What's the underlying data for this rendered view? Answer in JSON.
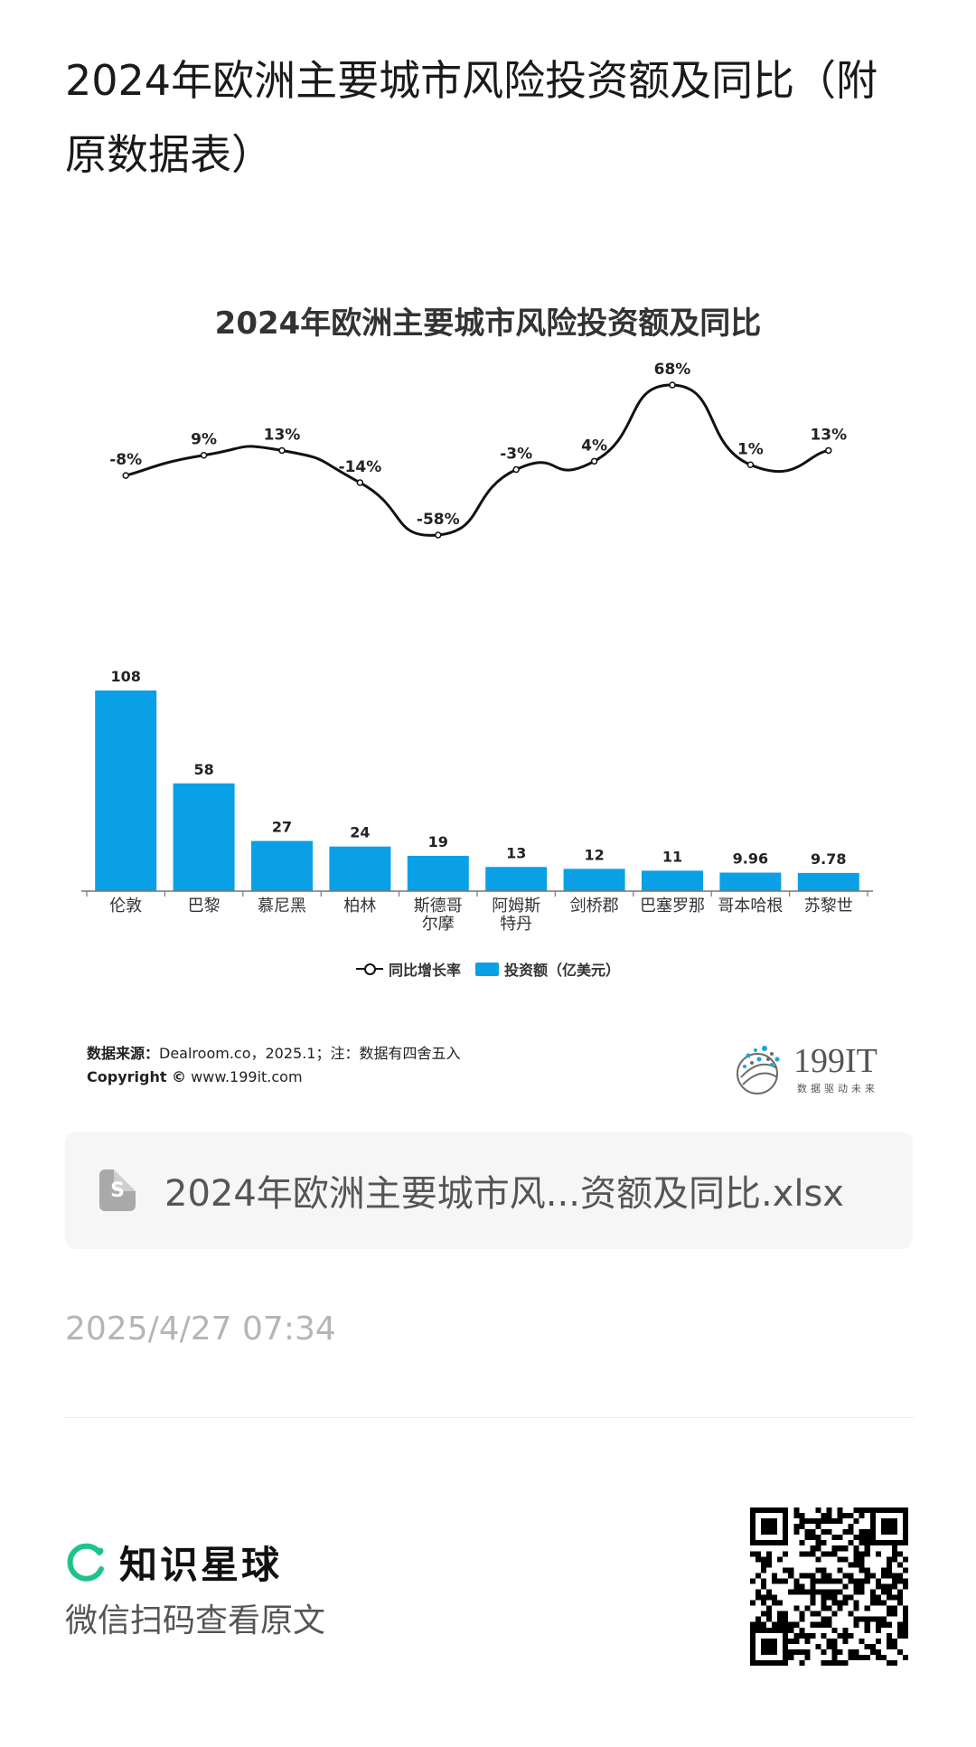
{
  "page": {
    "title": "2024年欧洲主要城市风险投资额及同比（附原数据表）"
  },
  "chart_data": {
    "type": "bar",
    "title": "2024年欧洲主要城市风险投资额及同比",
    "categories": [
      "伦敦",
      "巴黎",
      "慕尼黑",
      "柏林",
      "斯德哥尔摩",
      "阿姆斯特丹",
      "剑桥郡",
      "巴塞罗那",
      "哥本哈根",
      "苏黎世"
    ],
    "category_lines": [
      [
        "伦敦"
      ],
      [
        "巴黎"
      ],
      [
        "慕尼黑"
      ],
      [
        "柏林"
      ],
      [
        "斯德哥",
        "尔摩"
      ],
      [
        "阿姆斯",
        "特丹"
      ],
      [
        "剑桥郡"
      ],
      [
        "巴塞罗那"
      ],
      [
        "哥本哈根"
      ],
      [
        "苏黎世"
      ]
    ],
    "series": [
      {
        "name": "投资额（亿美元）",
        "type": "bar",
        "values": [
          108,
          58,
          27,
          24,
          19,
          13,
          12,
          11,
          9.96,
          9.78
        ],
        "labels": [
          "108",
          "58",
          "27",
          "24",
          "19",
          "13",
          "12",
          "11",
          "9.96",
          "9.78"
        ],
        "color": "#0aa0e6"
      },
      {
        "name": "同比增长率",
        "type": "line",
        "values": [
          -8,
          9,
          13,
          -14,
          -58,
          -3,
          4,
          68,
          1,
          13
        ],
        "labels": [
          "-8%",
          "9%",
          "13%",
          "-14%",
          "-58%",
          "-3%",
          "4%",
          "68%",
          "1%",
          "13%"
        ],
        "color": "#111111"
      }
    ],
    "bar_ylim": [
      0,
      108
    ],
    "line_ylim": [
      -58,
      68
    ],
    "grid": false,
    "legend_position": "bottom"
  },
  "legend": {
    "line_label": "同比增长率",
    "bar_label": "投资额（亿美元）"
  },
  "footer": {
    "source_label": "数据来源：",
    "source_text": "Dealroom.co，2025.1；注：数据有四舍五入",
    "copyright_label": "Copyright ©",
    "copyright_text": "www.199it.com",
    "brand_name": "199IT",
    "brand_slogan": "数据驱动未来"
  },
  "attachment": {
    "icon_letter": "S",
    "file_name": "2024年欧洲主要城市风...资额及同比.xlsx"
  },
  "timestamp": "2025/4/27 07:34",
  "promo": {
    "brand": "知识星球",
    "hint": "微信扫码查看原文"
  },
  "colors": {
    "bar": "#0aa0e6",
    "line": "#111111",
    "zsxq": "#1ec38b"
  }
}
